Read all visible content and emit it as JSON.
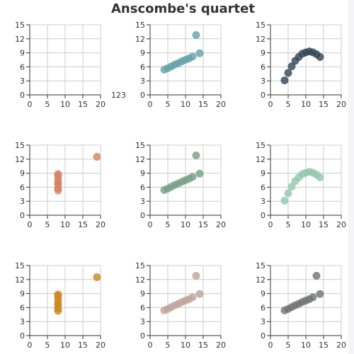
{
  "chart_data": {
    "title": "Anscombe's quartet",
    "type": "scatter",
    "xlim": [
      0,
      20
    ],
    "ylim": [
      0,
      15
    ],
    "x_ticks": [
      "0",
      "5",
      "10",
      "15",
      "20"
    ],
    "y_ticks": [
      "0",
      "3",
      "6",
      "9",
      "12",
      "15"
    ],
    "grid": true,
    "stray_label": "123",
    "panels": [
      {
        "color": "#c23531",
        "points": []
      },
      {
        "color": "#61a0a8",
        "points": [
          [
            4,
            5.4
          ],
          [
            5,
            5.7
          ],
          [
            6,
            6.1
          ],
          [
            7,
            6.5
          ],
          [
            8,
            6.8
          ],
          [
            9,
            7.2
          ],
          [
            10,
            7.5
          ],
          [
            11,
            7.8
          ],
          [
            12,
            8.2
          ],
          [
            13,
            12.8
          ],
          [
            14,
            8.9
          ]
        ]
      },
      {
        "color": "#2f4554",
        "points": [
          [
            4,
            3.1
          ],
          [
            5,
            4.7
          ],
          [
            6,
            6.1
          ],
          [
            7,
            7.3
          ],
          [
            8,
            8.1
          ],
          [
            9,
            8.8
          ],
          [
            10,
            9.1
          ],
          [
            11,
            9.3
          ],
          [
            12,
            9.1
          ],
          [
            13,
            8.7
          ],
          [
            14,
            8.1
          ]
        ]
      },
      {
        "color": "#d48265",
        "points": [
          [
            8,
            5.3
          ],
          [
            8,
            5.8
          ],
          [
            8,
            6.6
          ],
          [
            8,
            7.0
          ],
          [
            8,
            7.7
          ],
          [
            8,
            8.5
          ],
          [
            8,
            8.8
          ],
          [
            19,
            12.5
          ]
        ]
      },
      {
        "color": "#749f83",
        "points": [
          [
            4,
            5.4
          ],
          [
            5,
            5.7
          ],
          [
            6,
            6.1
          ],
          [
            7,
            6.5
          ],
          [
            8,
            6.8
          ],
          [
            9,
            7.2
          ],
          [
            10,
            7.5
          ],
          [
            11,
            7.8
          ],
          [
            12,
            8.2
          ],
          [
            13,
            12.8
          ],
          [
            14,
            8.9
          ]
        ]
      },
      {
        "color": "#91c7ae",
        "points": [
          [
            4,
            3.1
          ],
          [
            5,
            4.7
          ],
          [
            6,
            6.1
          ],
          [
            7,
            7.3
          ],
          [
            8,
            8.1
          ],
          [
            9,
            8.8
          ],
          [
            10,
            9.1
          ],
          [
            11,
            9.3
          ],
          [
            12,
            9.1
          ],
          [
            13,
            8.7
          ],
          [
            14,
            8.1
          ]
        ]
      },
      {
        "color": "#ca8622",
        "points": [
          [
            8,
            5.3
          ],
          [
            8,
            5.8
          ],
          [
            8,
            6.6
          ],
          [
            8,
            7.0
          ],
          [
            8,
            7.7
          ],
          [
            8,
            8.5
          ],
          [
            8,
            8.8
          ],
          [
            19,
            12.5
          ]
        ]
      },
      {
        "color": "#bda29a",
        "points": [
          [
            4,
            5.4
          ],
          [
            5,
            5.7
          ],
          [
            6,
            6.1
          ],
          [
            7,
            6.5
          ],
          [
            8,
            6.8
          ],
          [
            9,
            7.2
          ],
          [
            10,
            7.5
          ],
          [
            11,
            7.8
          ],
          [
            12,
            8.2
          ],
          [
            13,
            12.8
          ],
          [
            14,
            8.9
          ]
        ]
      },
      {
        "color": "#6e7074",
        "points": [
          [
            4,
            5.4
          ],
          [
            5,
            5.7
          ],
          [
            6,
            6.1
          ],
          [
            7,
            6.5
          ],
          [
            8,
            6.8
          ],
          [
            9,
            7.2
          ],
          [
            10,
            7.5
          ],
          [
            11,
            7.8
          ],
          [
            12,
            8.2
          ],
          [
            13,
            12.8
          ],
          [
            14,
            8.9
          ]
        ]
      }
    ]
  }
}
